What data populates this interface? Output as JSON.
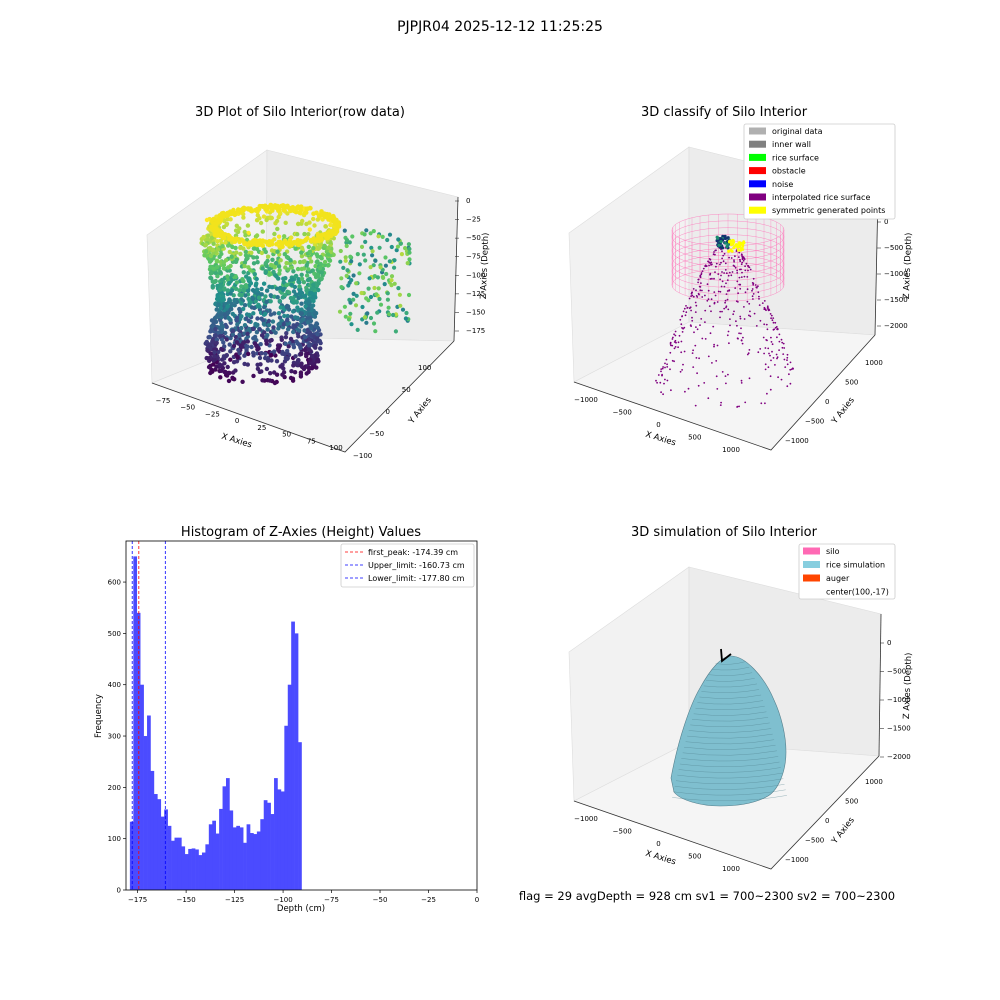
{
  "figure": {
    "suptitle": "PJPJR04 2025-12-12 11:25:25",
    "footer": "flag = 29  avgDepth = 928 cm  sv1 = 700~2300  sv2 = 700~2300"
  },
  "colors": {
    "histogram_bar": "#4b4bff",
    "silo_wireframe": "#ff69b4",
    "rice_simulation": "#87cedf",
    "auger": "#ff4500",
    "noise": "#0000ff",
    "rice_surface": "#00ff00",
    "obstacle": "#ff0000",
    "interpolated_rice_surface": "#800080",
    "symmetric_points": "#ffff00",
    "inner_wall": "#808080",
    "original_data": "#b0b0b0"
  },
  "chart_data": [
    {
      "type": "scatter",
      "subtype": "3d-scatter",
      "title": "3D Plot of Silo Interior(row data)",
      "xlabel": "X Axies",
      "ylabel": "Y Axies",
      "zlabel": "Z Axies (Depth)",
      "x_ticks": [
        "−75",
        "−50",
        "−25",
        "0",
        "25",
        "50",
        "75",
        "100"
      ],
      "y_ticks": [
        "−100",
        "−50",
        "0",
        "50",
        "100"
      ],
      "z_ticks": [
        "0",
        "−25",
        "−50",
        "−75",
        "−100",
        "−125",
        "−150",
        "−175"
      ],
      "colormap": "viridis"
    },
    {
      "type": "scatter",
      "subtype": "3d-scatter",
      "title": "3D classify of Silo Interior",
      "xlabel": "X Axies",
      "ylabel": "Y Axies",
      "zlabel": "Z Axies (Depth)",
      "x_ticks": [
        "−1000",
        "−500",
        "0",
        "500",
        "1000"
      ],
      "y_ticks": [
        "−1000",
        "−500",
        "0",
        "500",
        "1000"
      ],
      "z_ticks": [
        "0",
        "−500",
        "−1000",
        "−1500",
        "−2000"
      ],
      "legend": [
        {
          "label": "original data",
          "color": "#b0b0b0"
        },
        {
          "label": "inner wall",
          "color": "#808080"
        },
        {
          "label": "rice surface",
          "color": "#00ff00"
        },
        {
          "label": "obstacle",
          "color": "#ff0000"
        },
        {
          "label": "noise",
          "color": "#0000ff"
        },
        {
          "label": "interpolated rice surface",
          "color": "#800080"
        },
        {
          "label": "symmetric generated points",
          "color": "#ffff00"
        }
      ],
      "legend_position": "top-right"
    },
    {
      "type": "bar",
      "subtype": "histogram",
      "title": "Histogram of Z-Axies (Height) Values",
      "xlabel": "Depth (cm)",
      "ylabel": "Frequency",
      "xlim": [
        -181,
        0
      ],
      "ylim": [
        0,
        680
      ],
      "x_ticks": [
        -175,
        -150,
        -125,
        -100,
        -75,
        -50,
        -25,
        0
      ],
      "x_tick_labels": [
        "−175",
        "−150",
        "−125",
        "−100",
        "−75",
        "−50",
        "−25",
        "0"
      ],
      "y_ticks": [
        0,
        100,
        200,
        300,
        400,
        500,
        600
      ],
      "bin_start": -179,
      "bin_width": 1.77,
      "values": [
        133,
        650,
        540,
        400,
        300,
        340,
        232,
        187,
        177,
        143,
        157,
        125,
        96,
        102,
        102,
        85,
        70,
        80,
        81,
        79,
        68,
        73,
        89,
        128,
        135,
        110,
        158,
        202,
        218,
        155,
        122,
        125,
        122,
        92,
        128,
        111,
        109,
        114,
        138,
        175,
        170,
        148,
        218,
        196,
        192,
        320,
        400,
        523,
        500,
        288
      ],
      "lines": [
        {
          "label": "first_peak: -174.39 cm",
          "x": -174.39,
          "color": "#ff0000"
        },
        {
          "label": "Upper_limit: -160.73 cm",
          "x": -160.73,
          "color": "#0000ff"
        },
        {
          "label": "Lower_limit: -177.80 cm",
          "x": -177.8,
          "color": "#0000ff"
        }
      ],
      "legend_position": "top-right"
    },
    {
      "type": "area",
      "subtype": "3d-surface",
      "title": "3D simulation of Silo Interior",
      "xlabel": "X Axies",
      "ylabel": "Y Axies",
      "zlabel": "Z Axies (Depth)",
      "x_ticks": [
        "−1000",
        "−500",
        "0",
        "500",
        "1000"
      ],
      "y_ticks": [
        "−1000",
        "−500",
        "0",
        "500",
        "1000"
      ],
      "z_ticks": [
        "0",
        "−500",
        "−1000",
        "−1500",
        "−2000"
      ],
      "legend": [
        {
          "label": "silo",
          "color": "#ff69b4"
        },
        {
          "label": "rice simulation",
          "color": "#87cedf"
        },
        {
          "label": "auger",
          "color": "#ff4500"
        },
        {
          "label": "center(100,-17)",
          "color": ""
        }
      ],
      "legend_position": "top-right"
    }
  ]
}
